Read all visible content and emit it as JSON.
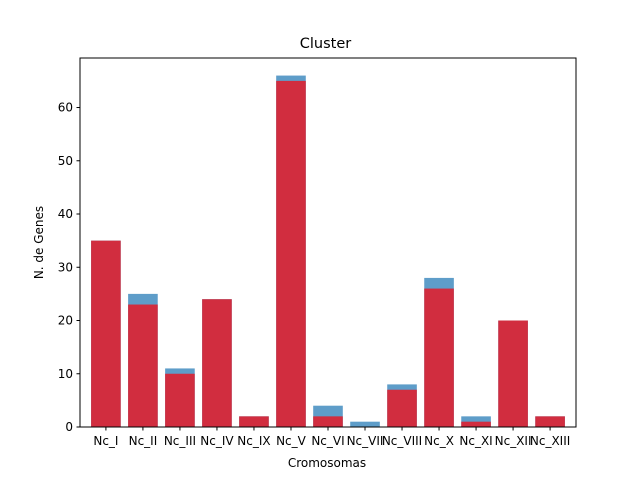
{
  "chart_data": {
    "type": "bar",
    "title": "Cluster",
    "xlabel": "Cromosomas",
    "ylabel": "N. de Genes",
    "categories": [
      "Nc_I",
      "Nc_II",
      "Nc_III",
      "Nc_IV",
      "Nc_IX",
      "Nc_V",
      "Nc_VI",
      "Nc_VII",
      "Nc_VIII",
      "Nc_X",
      "Nc_XI",
      "Nc_XII",
      "Nc_XIII"
    ],
    "series": [
      {
        "color": "#5e9dc9",
        "values": [
          35,
          25,
          11,
          24,
          2,
          66,
          4,
          1,
          8,
          28,
          2,
          20,
          2
        ]
      },
      {
        "color": "#d12d3f",
        "values": [
          35,
          23,
          10,
          24,
          2,
          65,
          2,
          0,
          7,
          26,
          1,
          20,
          2
        ]
      }
    ],
    "ylim": [
      0,
      69.3
    ],
    "yticks": [
      0,
      10,
      20,
      30,
      40,
      50,
      60
    ],
    "grid": false,
    "legend": "none"
  }
}
